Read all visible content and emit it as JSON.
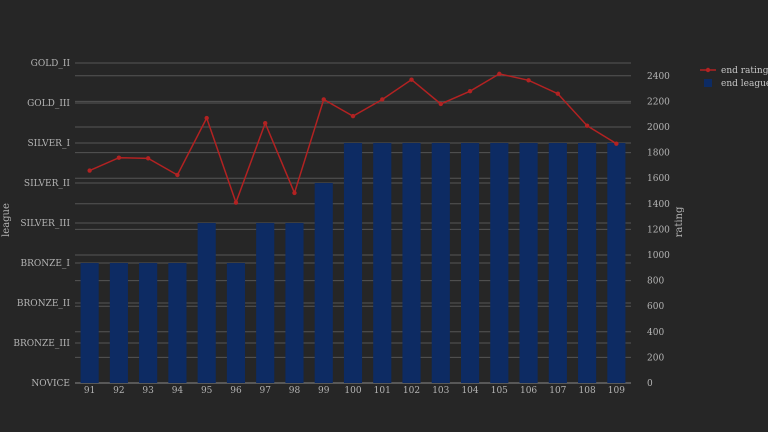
{
  "colors": {
    "background": "#262626",
    "grid": "#555555",
    "bar": "#0d2b63",
    "line": "#b22222",
    "text": "#b4b4b4"
  },
  "chart_data": {
    "type": "bar",
    "categories": [
      "91",
      "92",
      "93",
      "94",
      "95",
      "96",
      "97",
      "98",
      "99",
      "100",
      "101",
      "102",
      "103",
      "104",
      "105",
      "106",
      "107",
      "108",
      "109"
    ],
    "y_left": {
      "label": "league",
      "ticks": [
        "NOVICE",
        "BRONZE_III",
        "BRONZE_II",
        "BRONZE_I",
        "SILVER_III",
        "SILVER_II",
        "SILVER_I",
        "GOLD_III",
        "GOLD_II"
      ]
    },
    "y_right": {
      "label": "rating",
      "ticks": [
        0,
        200,
        400,
        600,
        800,
        1000,
        1200,
        1400,
        1600,
        1800,
        2000,
        2200,
        2400
      ],
      "ylim": [
        0,
        2500
      ]
    },
    "series": [
      {
        "name": "end league",
        "type": "bar",
        "axis": "left",
        "values": [
          "BRONZE_I",
          "BRONZE_I",
          "BRONZE_I",
          "BRONZE_I",
          "SILVER_III",
          "BRONZE_I",
          "SILVER_III",
          "SILVER_III",
          "SILVER_II",
          "SILVER_I",
          "SILVER_I",
          "SILVER_I",
          "SILVER_I",
          "SILVER_I",
          "SILVER_I",
          "SILVER_I",
          "SILVER_I",
          "SILVER_I",
          "SILVER_I"
        ]
      },
      {
        "name": "end rating",
        "type": "line",
        "axis": "right",
        "values": [
          1660,
          1760,
          1755,
          1625,
          2070,
          1410,
          2030,
          1485,
          2215,
          2085,
          2215,
          2370,
          2180,
          2280,
          2415,
          2365,
          2260,
          2010,
          1870
        ]
      }
    ],
    "legend_position": "top-right",
    "grid": true
  }
}
